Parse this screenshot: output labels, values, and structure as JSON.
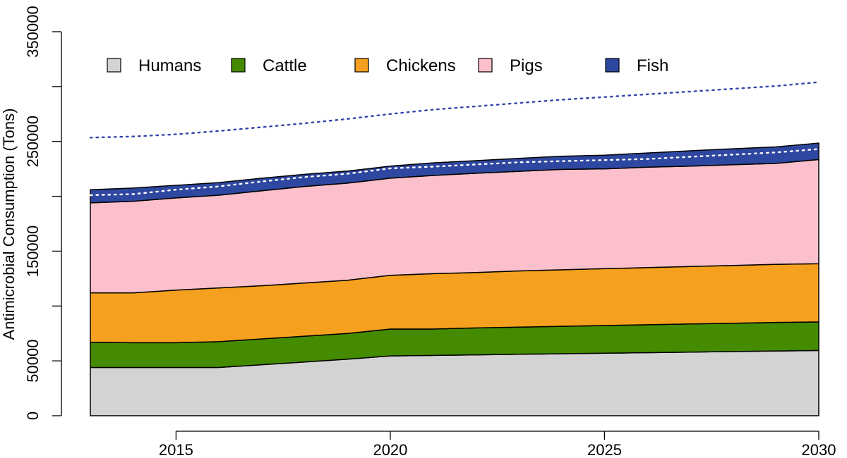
{
  "chart_data": {
    "type": "area",
    "stacked": true,
    "title": "",
    "xlabel": "",
    "ylabel": "Antimicrobial Consumption (Tons)",
    "xlim": [
      2013,
      2030
    ],
    "ylim": [
      0,
      350000
    ],
    "x_ticks": [
      "2015",
      "2020",
      "2025",
      "2030"
    ],
    "y_ticks": [
      "0",
      "50000",
      "150000",
      "250000",
      "350000"
    ],
    "legend_placement": "top",
    "grid": false,
    "x": [
      2013,
      2014,
      2015,
      2016,
      2017,
      2018,
      2019,
      2020,
      2021,
      2022,
      2023,
      2024,
      2025,
      2026,
      2027,
      2028,
      2029,
      2030
    ],
    "series": [
      {
        "name": "Humans",
        "color": "#d3d3d3",
        "values": [
          44000,
          44000,
          44000,
          44000,
          46500,
          49000,
          51500,
          54500,
          55000,
          55500,
          56000,
          56500,
          57000,
          57500,
          58000,
          58500,
          59000,
          59500
        ]
      },
      {
        "name": "Cattle",
        "color": "#458b00",
        "values": [
          23000,
          22500,
          22500,
          23500,
          23500,
          23500,
          23500,
          24500,
          24000,
          24500,
          24800,
          25000,
          25200,
          25400,
          25600,
          25800,
          26000,
          26000
        ]
      },
      {
        "name": "Chickens",
        "color": "#f5a01e",
        "values": [
          45000,
          45500,
          48000,
          49000,
          48500,
          48500,
          48500,
          49000,
          50500,
          50500,
          51200,
          51500,
          51800,
          52100,
          52400,
          52700,
          53000,
          53000
        ]
      },
      {
        "name": "Pigs",
        "color": "#fbc0cb",
        "values": [
          82000,
          83500,
          84000,
          84500,
          86500,
          88000,
          88500,
          88500,
          89500,
          90500,
          90800,
          91500,
          91000,
          91500,
          91500,
          91800,
          92000,
          95000
        ]
      },
      {
        "name": "Fish",
        "color": "#2e47a0",
        "values": [
          12000,
          12000,
          11500,
          11500,
          11500,
          11000,
          11000,
          11000,
          11500,
          11500,
          11700,
          12000,
          12500,
          13000,
          14000,
          14500,
          15000,
          15000
        ]
      }
    ],
    "dotted_lines": [
      {
        "color": "#ffffff",
        "values": [
          201000,
          202000,
          206000,
          209000,
          213500,
          217500,
          220500,
          225500,
          227000,
          229000,
          231000,
          232000,
          233000,
          234000,
          236000,
          238000,
          240000,
          243000
        ]
      },
      {
        "color": "#3344aa",
        "values": [
          253500,
          254500,
          256500,
          259500,
          263000,
          266500,
          270500,
          275000,
          279000,
          282000,
          285000,
          288000,
          290500,
          293000,
          295500,
          298000,
          300500,
          304000
        ]
      }
    ]
  }
}
